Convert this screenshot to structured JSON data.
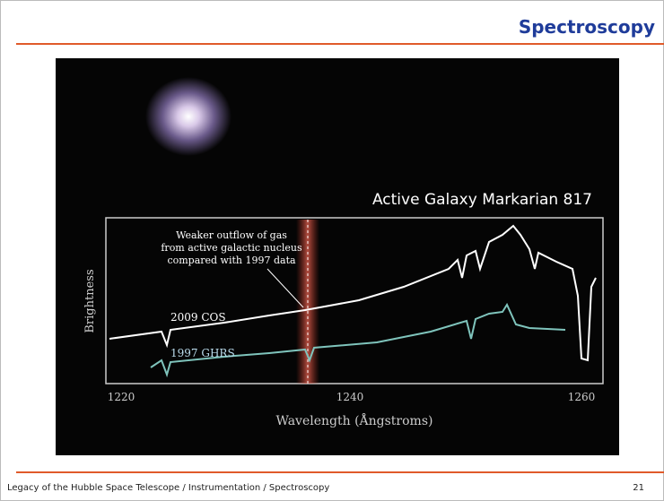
{
  "header": {
    "title": "Spectroscopy"
  },
  "figure": {
    "title": "Active Galaxy Markarian 817",
    "annotation": [
      "Weaker outflow of gas",
      "from active galactic nucleus",
      "compared with 1997 data"
    ],
    "y_label": "Brightness",
    "x_label": "Wavelength (Ångstroms)",
    "x_ticks": [
      "1220",
      "1240",
      "1260"
    ],
    "series_labels": [
      "2009 COS",
      "1997 GHRS"
    ]
  },
  "footer": {
    "text": "Legacy of the Hubble Space Telescope / Instrumentation / Spectroscopy",
    "page": "21"
  }
}
